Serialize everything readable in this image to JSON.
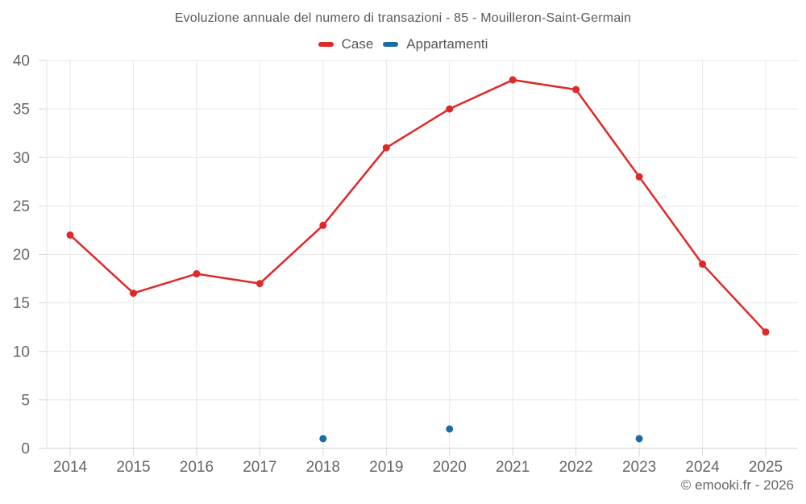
{
  "chart": {
    "credit": "© emooki.fr - 2026"
  },
  "chart_data": {
    "type": "line",
    "title": "Evoluzione annuale del numero di transazioni - 85 - Mouilleron-Saint-Germain",
    "categories": [
      "2014",
      "2015",
      "2016",
      "2017",
      "2018",
      "2019",
      "2020",
      "2021",
      "2022",
      "2023",
      "2024",
      "2025"
    ],
    "series": [
      {
        "name": "Case",
        "color": "#e02828",
        "draw_line": true,
        "values": [
          22,
          16,
          18,
          17,
          23,
          31,
          35,
          38,
          37,
          28,
          19,
          12
        ]
      },
      {
        "name": "Appartamenti",
        "color": "#1a6ca2",
        "draw_line": true,
        "values": [
          null,
          null,
          null,
          null,
          1,
          null,
          2,
          null,
          null,
          1,
          null,
          null
        ]
      }
    ],
    "xlabel": "",
    "ylabel": "",
    "ylim": [
      0,
      40
    ],
    "yticks": [
      0,
      5,
      10,
      15,
      20,
      25,
      30,
      35,
      40
    ],
    "grid": true,
    "legend_position": "top"
  }
}
